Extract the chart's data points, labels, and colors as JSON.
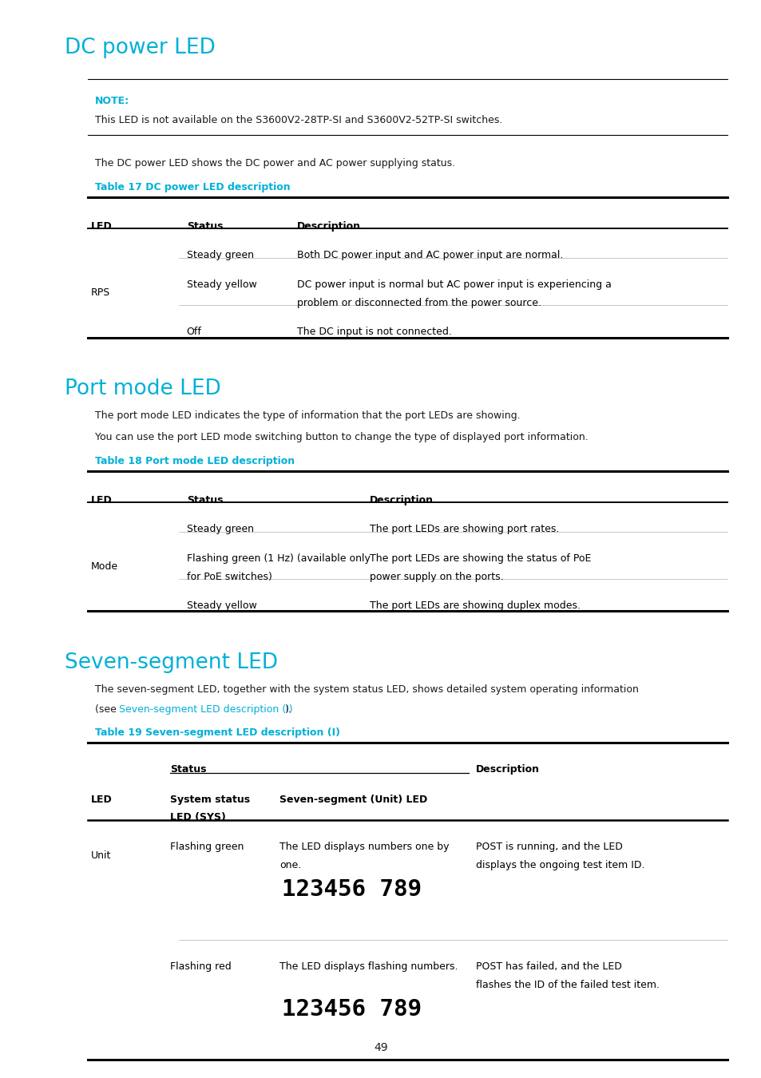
{
  "bg_color": "#ffffff",
  "cyan_color": "#00b0d8",
  "black_color": "#1a1a1a",
  "note_cyan": "#00b0d8",
  "section1_title": "DC power LED",
  "section1_note_label": "NOTE:",
  "section1_note_text": "This LED is not available on the S3600V2-28TP-SI and S3600V2-52TP-SI switches.",
  "section1_body": "The DC power LED shows the DC power and AC power supplying status.",
  "section1_table_title": "Table 17 DC power LED description",
  "section2_title": "Port mode LED",
  "section2_body1": "The port mode LED indicates the type of information that the port LEDs are showing.",
  "section2_body2": "You can use the port LED mode switching button to change the type of displayed port information.",
  "section2_table_title": "Table 18 Port mode LED description",
  "section3_title": "Seven-segment LED",
  "section3_body1": "The seven-segment LED, together with the system status LED, shows detailed system operating information",
  "section3_body2_pre": "(see ",
  "section3_body2_link": "Seven-segment LED description (I)",
  "section3_body2_post": ").",
  "section3_table_title": "Table 19 Seven-segment LED description (I)",
  "page_number": "49",
  "lm": 0.085,
  "lm2": 0.115,
  "rm": 0.955
}
